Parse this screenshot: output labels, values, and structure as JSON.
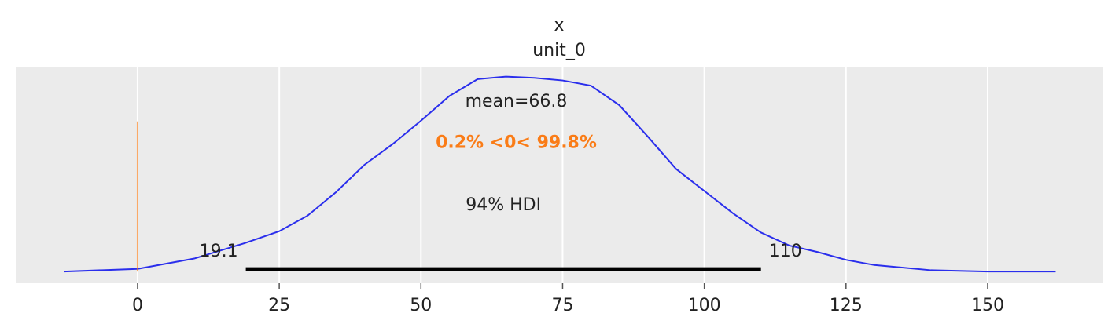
{
  "chart_data": {
    "type": "density",
    "title": "x",
    "subtitle": "unit_0",
    "x": [
      -13,
      0,
      10,
      19,
      25,
      30,
      35,
      40,
      45,
      50,
      55,
      60,
      65,
      70,
      75,
      80,
      85,
      90,
      95,
      100,
      105,
      110,
      115,
      120,
      125,
      130,
      140,
      150,
      162
    ],
    "values": [
      0,
      0.0002,
      0.001,
      0.0022,
      0.0031,
      0.0043,
      0.0061,
      0.0082,
      0.0098,
      0.0116,
      0.0135,
      0.0148,
      0.015,
      0.0149,
      0.0147,
      0.0143,
      0.0128,
      0.0104,
      0.0079,
      0.0062,
      0.0045,
      0.003,
      0.002,
      0.0015,
      0.0009,
      0.0005,
      0.0001,
      0,
      0
    ],
    "color": "#2a2eec",
    "xlim": [
      -21.5,
      170.4
    ],
    "ylim": [
      -0.0009,
      0.0157
    ],
    "xticks": [
      0,
      25,
      50,
      75,
      100,
      125,
      150
    ],
    "grid": true,
    "mean_label": "mean=66.8",
    "ref_label": "0.2% <0< 99.8%",
    "ref_val": 0,
    "ref_color": "#fa7c17",
    "hdi_label": "94% HDI",
    "hdi": [
      19.1,
      110
    ]
  }
}
